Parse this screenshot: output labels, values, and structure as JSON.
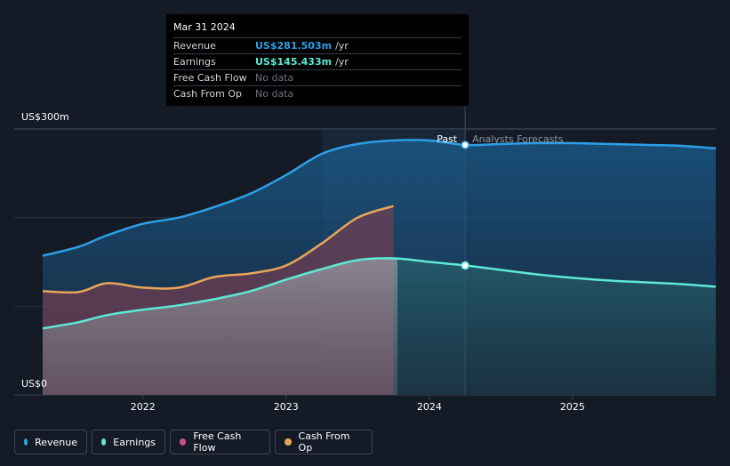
{
  "tooltip": {
    "date": "Mar 31 2024",
    "rows": [
      {
        "label": "Revenue",
        "value": "US$281.503m",
        "unit": "/yr",
        "color": "#2d9fe6"
      },
      {
        "label": "Earnings",
        "value": "US$145.433m",
        "unit": "/yr",
        "color": "#5ee8d5"
      },
      {
        "label": "Free Cash Flow",
        "value": "No data",
        "unit": ""
      },
      {
        "label": "Cash From Op",
        "value": "No data",
        "unit": ""
      }
    ]
  },
  "chart_data": {
    "type": "area",
    "ylabel_top": "US$300m",
    "ylabel_bottom": "US$0",
    "ylim": [
      0,
      300
    ],
    "xlim": [
      2021.3,
      2026.0
    ],
    "x_ticks": [
      {
        "value": 2022,
        "label": "2022"
      },
      {
        "value": 2023,
        "label": "2023"
      },
      {
        "value": 2024,
        "label": "2024"
      },
      {
        "value": 2025,
        "label": "2025"
      }
    ],
    "highlight_range": [
      2023.25,
      2024.25
    ],
    "divider_x": 2024.25,
    "past_label": "Past",
    "forecast_label": "Analysts Forecasts",
    "series": [
      {
        "name": "Revenue",
        "color": "#2d9fe6",
        "x": [
          2021.3,
          2021.55,
          2021.75,
          2022.0,
          2022.25,
          2022.5,
          2022.75,
          2023.0,
          2023.25,
          2023.5,
          2023.75,
          2024.0,
          2024.25,
          2024.5,
          2024.75,
          2025.0,
          2025.25,
          2025.5,
          2025.75,
          2026.0
        ],
        "values": [
          157,
          167,
          180,
          193,
          200,
          212,
          227,
          248,
          272,
          283,
          287,
          287,
          282,
          283,
          284,
          284,
          283,
          282,
          281,
          278
        ]
      },
      {
        "name": "Earnings",
        "color": "#5ee8d5",
        "x": [
          2021.3,
          2021.55,
          2021.75,
          2022.0,
          2022.25,
          2022.5,
          2022.75,
          2023.0,
          2023.25,
          2023.5,
          2023.75,
          2024.0,
          2024.25,
          2024.5,
          2024.75,
          2025.0,
          2025.25,
          2025.5,
          2025.75,
          2026.0
        ],
        "values": [
          75,
          82,
          90,
          96,
          101,
          108,
          117,
          130,
          142,
          152,
          154,
          150,
          146,
          141,
          136,
          132,
          129,
          127,
          125,
          122
        ]
      },
      {
        "name": "Free Cash Flow",
        "color": "#c94f8e",
        "x": [],
        "values": []
      },
      {
        "name": "Cash From Op",
        "color": "#e8a55b",
        "x": [
          2021.3,
          2021.55,
          2021.75,
          2022.0,
          2022.25,
          2022.5,
          2022.75,
          2023.0,
          2023.25,
          2023.5,
          2023.75
        ],
        "values": [
          117,
          116,
          126,
          121,
          121,
          133,
          137,
          146,
          171,
          200,
          213
        ]
      }
    ],
    "markers": [
      {
        "series": "Revenue",
        "x": 2024.25,
        "value": 282
      },
      {
        "series": "Earnings",
        "x": 2024.25,
        "value": 146
      }
    ]
  },
  "legend": [
    {
      "label": "Revenue",
      "color": "#2d9fe6"
    },
    {
      "label": "Earnings",
      "color": "#5ee8d5"
    },
    {
      "label": "Free Cash Flow",
      "color": "#c94f8e"
    },
    {
      "label": "Cash From Op",
      "color": "#e8a55b"
    }
  ]
}
